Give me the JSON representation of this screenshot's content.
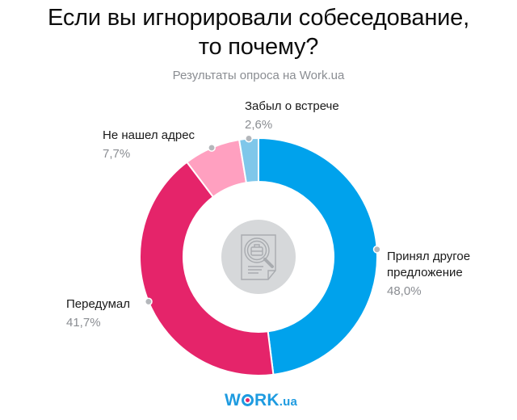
{
  "header": {
    "title_line1": "Если вы игнорировали собеседование,",
    "title_line2": "то почему?",
    "subtitle": "Результаты опроса на Work.ua"
  },
  "labels": {
    "accepted": {
      "name": "Принял другое",
      "name2": "предложение",
      "value": "48,0%"
    },
    "changed_mind": {
      "name": "Передумал",
      "value": "41,7%"
    },
    "no_address": {
      "name": "Не нашел адрес",
      "value": "7,7%"
    },
    "forgot": {
      "name": "Забыл о встрече",
      "value": "2,6%"
    }
  },
  "logo": {
    "w": "W",
    "rk": "RK",
    "ua": ".ua"
  },
  "center_icon": "document-search-briefcase-icon",
  "chart_data": {
    "type": "pie",
    "subtype": "donut",
    "title": "Если вы игнорировали собеседование, то почему?",
    "subtitle": "Результаты опроса на Work.ua",
    "categories": [
      "Принял другое предложение",
      "Передумал",
      "Не нашел адрес",
      "Забыл о встрече"
    ],
    "values": [
      48.0,
      41.7,
      7.7,
      2.6
    ],
    "value_labels": [
      "48,0%",
      "41,7%",
      "7,7%",
      "2,6%"
    ],
    "unit": "%",
    "colors": [
      "#00a2ec",
      "#e5246a",
      "#ffa0c0",
      "#7fc7ea"
    ],
    "start_angle_deg": 0,
    "direction": "clockwise",
    "legend": "none",
    "labels_position": "outside"
  }
}
